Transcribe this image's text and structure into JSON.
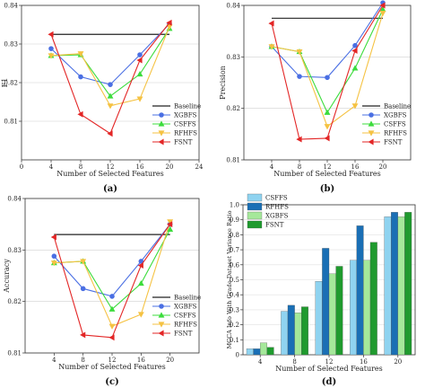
{
  "chart_data": [
    {
      "panel": "(a)",
      "type": "line",
      "xlabel": "Number of Selected Features",
      "ylabel": "F1",
      "x": [
        4,
        8,
        12,
        16,
        20
      ],
      "xlim": [
        0,
        24
      ],
      "ylim": [
        0.8,
        0.84
      ],
      "xticks": [
        0,
        4,
        8,
        12,
        16,
        20,
        24
      ],
      "yticks": [
        0.81,
        0.82,
        0.83,
        0.84
      ],
      "ytick_labels": [
        "0.81",
        "0.82",
        "0.83",
        "0.84"
      ],
      "legend_position": "bottom-right",
      "baseline": {
        "name": "Baseline",
        "value": 0.8325
      },
      "series": [
        {
          "name": "XGBFS",
          "color": "#4a6fe3",
          "marker": "circle",
          "values": [
            0.8288,
            0.8215,
            0.8195,
            0.8272,
            0.8352
          ]
        },
        {
          "name": "CSFFS",
          "color": "#3cdc3c",
          "marker": "triangle",
          "values": [
            0.827,
            0.8272,
            0.8165,
            0.8222,
            0.834
          ]
        },
        {
          "name": "RFHFS",
          "color": "#f5c242",
          "marker": "triangle-down",
          "values": [
            0.827,
            0.8275,
            0.814,
            0.8158,
            0.8345
          ]
        },
        {
          "name": "FSNT",
          "color": "#e32626",
          "marker": "triangle-left",
          "values": [
            0.8325,
            0.8118,
            0.8068,
            0.8258,
            0.8355
          ]
        }
      ]
    },
    {
      "panel": "(b)",
      "type": "line",
      "xlabel": "Number of Selected Features",
      "ylabel": "Precision",
      "x": [
        4,
        8,
        12,
        16,
        20
      ],
      "xlim": [
        0,
        24
      ],
      "ylim": [
        0.81,
        0.84
      ],
      "xticks": [
        4,
        8,
        12,
        16,
        20
      ],
      "yticks": [
        0.81,
        0.82,
        0.83,
        0.84
      ],
      "ytick_labels": [
        "0.81",
        "0.82",
        "0.83",
        "0.84"
      ],
      "legend_position": "bottom-right",
      "baseline": {
        "name": "Baseline",
        "value": 0.8375
      },
      "series": [
        {
          "name": "XGBFS",
          "color": "#4a6fe3",
          "marker": "circle",
          "values": [
            0.832,
            0.8262,
            0.826,
            0.8322,
            0.8405
          ]
        },
        {
          "name": "CSFFS",
          "color": "#3cdc3c",
          "marker": "triangle",
          "values": [
            0.832,
            0.831,
            0.8192,
            0.8278,
            0.8392
          ]
        },
        {
          "name": "RFHFS",
          "color": "#f5c242",
          "marker": "triangle-down",
          "values": [
            0.832,
            0.831,
            0.8165,
            0.8205,
            0.8385
          ]
        },
        {
          "name": "FSNT",
          "color": "#e32626",
          "marker": "triangle-left",
          "values": [
            0.8365,
            0.814,
            0.8142,
            0.8312,
            0.84
          ]
        }
      ]
    },
    {
      "panel": "(c)",
      "type": "line",
      "xlabel": "Number of Selected Features",
      "ylabel": "Accuracy",
      "x": [
        4,
        8,
        12,
        16,
        20
      ],
      "xlim": [
        0,
        24
      ],
      "ylim": [
        0.81,
        0.84
      ],
      "xticks": [
        4,
        8,
        12,
        16,
        20
      ],
      "yticks": [
        0.81,
        0.82,
        0.83,
        0.84
      ],
      "ytick_labels": [
        "0.81",
        "0.82",
        "0.83",
        "0.84"
      ],
      "legend_position": "bottom-right",
      "baseline": {
        "name": "Baseline",
        "value": 0.833
      },
      "series": [
        {
          "name": "XGBFS",
          "color": "#4a6fe3",
          "marker": "circle",
          "values": [
            0.8288,
            0.8225,
            0.821,
            0.8278,
            0.835
          ]
        },
        {
          "name": "CSFFS",
          "color": "#3cdc3c",
          "marker": "triangle",
          "values": [
            0.8275,
            0.8278,
            0.8185,
            0.8235,
            0.834
          ]
        },
        {
          "name": "RFHFS",
          "color": "#f5c242",
          "marker": "triangle-down",
          "values": [
            0.8275,
            0.8278,
            0.8152,
            0.8175,
            0.8355
          ]
        },
        {
          "name": "FSNT",
          "color": "#e32626",
          "marker": "triangle-left",
          "values": [
            0.8325,
            0.8135,
            0.813,
            0.827,
            0.835
          ]
        }
      ]
    },
    {
      "panel": "(d)",
      "type": "bar",
      "xlabel": "Number of Selected Features",
      "ylabel": "MCCA Info With Grade Dataset Variance Ratio",
      "categories": [
        "4",
        "8",
        "12",
        "16",
        "20"
      ],
      "ylim": [
        0,
        1.0
      ],
      "yticks": [
        0,
        0.1,
        0.2,
        0.3,
        0.4,
        0.5,
        0.6,
        0.7,
        0.8,
        0.9,
        1.0
      ],
      "ytick_labels": [
        "0",
        "0.1",
        "0.2",
        "0.3",
        "0.4",
        "0.5",
        "0.6",
        "0.7",
        "0.8",
        "0.9",
        "1.0"
      ],
      "legend_position": "top-left",
      "series": [
        {
          "name": "CSFFS",
          "color": "#8fd3f0",
          "values": [
            0.04,
            0.29,
            0.49,
            0.63,
            0.92
          ]
        },
        {
          "name": "RFHFS",
          "color": "#1a6fb5",
          "values": [
            0.04,
            0.33,
            0.71,
            0.86,
            0.95
          ]
        },
        {
          "name": "XGBFS",
          "color": "#a5e89a",
          "values": [
            0.08,
            0.28,
            0.54,
            0.63,
            0.92
          ]
        },
        {
          "name": "FSNT",
          "color": "#1f9a2e",
          "values": [
            0.05,
            0.32,
            0.59,
            0.75,
            0.95
          ]
        }
      ]
    }
  ]
}
